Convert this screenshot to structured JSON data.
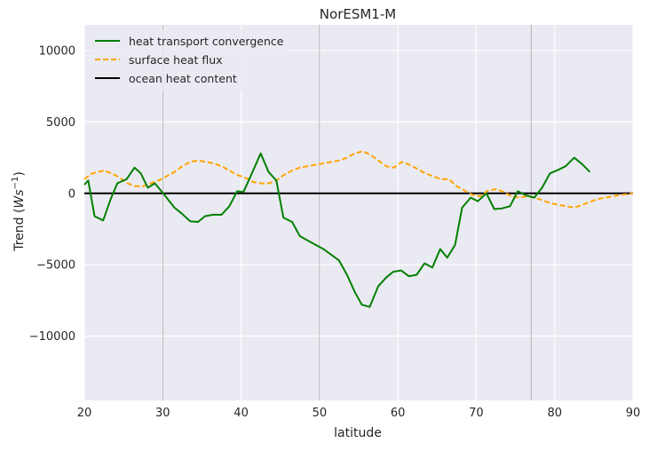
{
  "chart_data": {
    "type": "line",
    "title": "NorESM1-M",
    "xlabel": "latitude",
    "ylabel_prefix": "Trend (",
    "ylabel_unit_base": "Ws",
    "ylabel_unit_exp": "−1",
    "ylabel_suffix": ")",
    "xlim": [
      20,
      90
    ],
    "ylim": [
      -14500,
      11800
    ],
    "xticks": [
      20,
      30,
      40,
      50,
      60,
      70,
      80,
      90
    ],
    "xtick_labels": [
      "20",
      "30",
      "40",
      "50",
      "60",
      "70",
      "80",
      "90"
    ],
    "yticks": [
      -10000,
      -5000,
      0,
      5000,
      10000
    ],
    "ytick_labels": [
      "−10000",
      "−5000",
      "0",
      "5000",
      "10000"
    ],
    "grid": true,
    "legend_position": "top-left",
    "background_color": "#EAEAF2",
    "vertical_lines": [
      30,
      50,
      77
    ],
    "series": [
      {
        "name": "heat transport convergence",
        "color": "#008000",
        "style": "solid",
        "x": [
          20,
          20.5,
          21.3,
          22.4,
          23.3,
          24.2,
          25.4,
          26.4,
          27.2,
          28.1,
          29,
          30.2,
          31.5,
          32.4,
          33.5,
          34.5,
          35.4,
          36.4,
          37.5,
          38.5,
          39.5,
          40.3,
          41.3,
          42.5,
          43.5,
          44.5,
          45.4,
          46.5,
          47.5,
          48.5,
          49.5,
          50.5,
          51.5,
          52.5,
          53.5,
          54.5,
          55.4,
          56.4,
          57.5,
          58.5,
          59.4,
          60.4,
          61.4,
          62.4,
          63.4,
          64.4,
          65.4,
          66.3,
          67.3,
          68.2,
          69.3,
          70.2,
          71.3,
          72.3,
          73.3,
          74.3,
          75.3,
          76.4,
          77.4,
          78.4,
          79.4,
          80.5,
          81.4,
          82.5,
          83.5,
          84.5
        ],
        "y": [
          600,
          900,
          -1600,
          -1900,
          -500,
          700,
          1000,
          1800,
          1400,
          400,
          700,
          -100,
          -1000,
          -1400,
          -1950,
          -2000,
          -1600,
          -1500,
          -1500,
          -900,
          150,
          100,
          1300,
          2800,
          1500,
          900,
          -1700,
          -2000,
          -3000,
          -3300,
          -3600,
          -3900,
          -4300,
          -4700,
          -5700,
          -6900,
          -7800,
          -7950,
          -6500,
          -5900,
          -5500,
          -5400,
          -5800,
          -5700,
          -4900,
          -5200,
          -3900,
          -4500,
          -3600,
          -1000,
          -300,
          -550,
          0,
          -1100,
          -1050,
          -900,
          150,
          -150,
          -300,
          400,
          1400,
          1650,
          1900,
          2500,
          2050,
          1500
        ]
      },
      {
        "name": "surface heat flux",
        "color": "#FFA500",
        "style": "dashed",
        "x": [
          20,
          21,
          22.5,
          23.5,
          24.5,
          25.5,
          26.5,
          27.5,
          28.5,
          29.5,
          30.5,
          31.5,
          32.5,
          33.5,
          34.5,
          35.5,
          36.5,
          37.5,
          38.5,
          39.5,
          40.5,
          41.5,
          42.5,
          43.5,
          44.5,
          45.5,
          46.5,
          47.5,
          48.5,
          49.5,
          50.5,
          51.5,
          52.5,
          53.5,
          54.5,
          55.5,
          56.5,
          57.5,
          58.5,
          59.5,
          60.5,
          61.5,
          62.5,
          63.5,
          64.5,
          65.5,
          66.5,
          67.5,
          68.5,
          69.5,
          70.5,
          71.5,
          72.5,
          73.5,
          74.5,
          75.5,
          76.5,
          77.5,
          78.5,
          79.5,
          80.5,
          81.5,
          82.5,
          83.5,
          84.5,
          85.5,
          86.5,
          87.5,
          88.5,
          90
        ],
        "y": [
          1000,
          1400,
          1600,
          1400,
          1100,
          700,
          500,
          500,
          700,
          900,
          1200,
          1500,
          1900,
          2200,
          2300,
          2200,
          2100,
          1900,
          1600,
          1300,
          1100,
          800,
          700,
          700,
          900,
          1300,
          1600,
          1800,
          1900,
          2000,
          2100,
          2200,
          2300,
          2500,
          2800,
          2950,
          2700,
          2300,
          1900,
          1800,
          2200,
          2000,
          1700,
          1400,
          1200,
          1000,
          1000,
          500,
          200,
          -100,
          -200,
          200,
          300,
          100,
          -200,
          -300,
          -200,
          -300,
          -500,
          -700,
          -800,
          -900,
          -1000,
          -800,
          -600,
          -400,
          -300,
          -200,
          -100,
          0
        ]
      },
      {
        "name": "ocean heat content",
        "color": "#000000",
        "style": "solid",
        "x": [
          20,
          90
        ],
        "y": [
          0,
          0
        ]
      }
    ]
  }
}
